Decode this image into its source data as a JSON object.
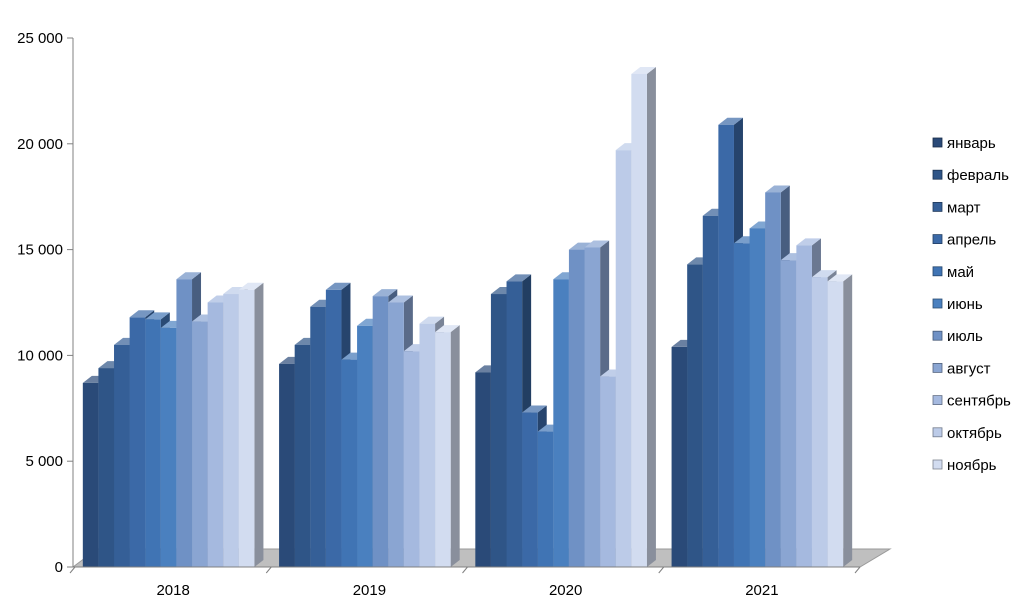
{
  "chart_data": {
    "type": "bar",
    "style": "3d-clustered-column",
    "title": "",
    "xlabel": "",
    "ylabel": "",
    "ylim": [
      0,
      25000
    ],
    "yticks": [
      0,
      5000,
      10000,
      15000,
      20000,
      25000
    ],
    "ytick_labels": [
      "0",
      "5 000",
      "10 000",
      "15 000",
      "20 000",
      "25 000"
    ],
    "grid": false,
    "legend_position": "right",
    "categories": [
      "2018",
      "2019",
      "2020",
      "2021"
    ],
    "series": [
      {
        "name": "январь",
        "color": "#2a4a78",
        "values": [
          8700,
          9600,
          9200,
          10400
        ]
      },
      {
        "name": "февраль",
        "color": "#2f5587",
        "values": [
          9400,
          10500,
          12900,
          14300
        ]
      },
      {
        "name": "март",
        "color": "#355f97",
        "values": [
          10500,
          12300,
          13500,
          16600
        ]
      },
      {
        "name": "апрель",
        "color": "#3b69a7",
        "values": [
          11800,
          13100,
          7300,
          20900
        ]
      },
      {
        "name": "май",
        "color": "#4074b4",
        "values": [
          11700,
          9800,
          6400,
          15300
        ]
      },
      {
        "name": "июнь",
        "color": "#4a80bf",
        "values": [
          11300,
          11400,
          13600,
          16000
        ]
      },
      {
        "name": "июль",
        "color": "#6f91c5",
        "values": [
          13600,
          12800,
          15000,
          17700
        ]
      },
      {
        "name": "август",
        "color": "#8aa5d2",
        "values": [
          11600,
          12500,
          15100,
          14500
        ]
      },
      {
        "name": "сентябрь",
        "color": "#a5b9df",
        "values": [
          12500,
          10200,
          9000,
          15200
        ]
      },
      {
        "name": "октябрь",
        "color": "#bccbe8",
        "values": [
          12900,
          11500,
          19700,
          13700
        ]
      },
      {
        "name": "ноябрь",
        "color": "#d2dcf0",
        "values": [
          13100,
          11100,
          23300,
          13500
        ]
      }
    ]
  }
}
